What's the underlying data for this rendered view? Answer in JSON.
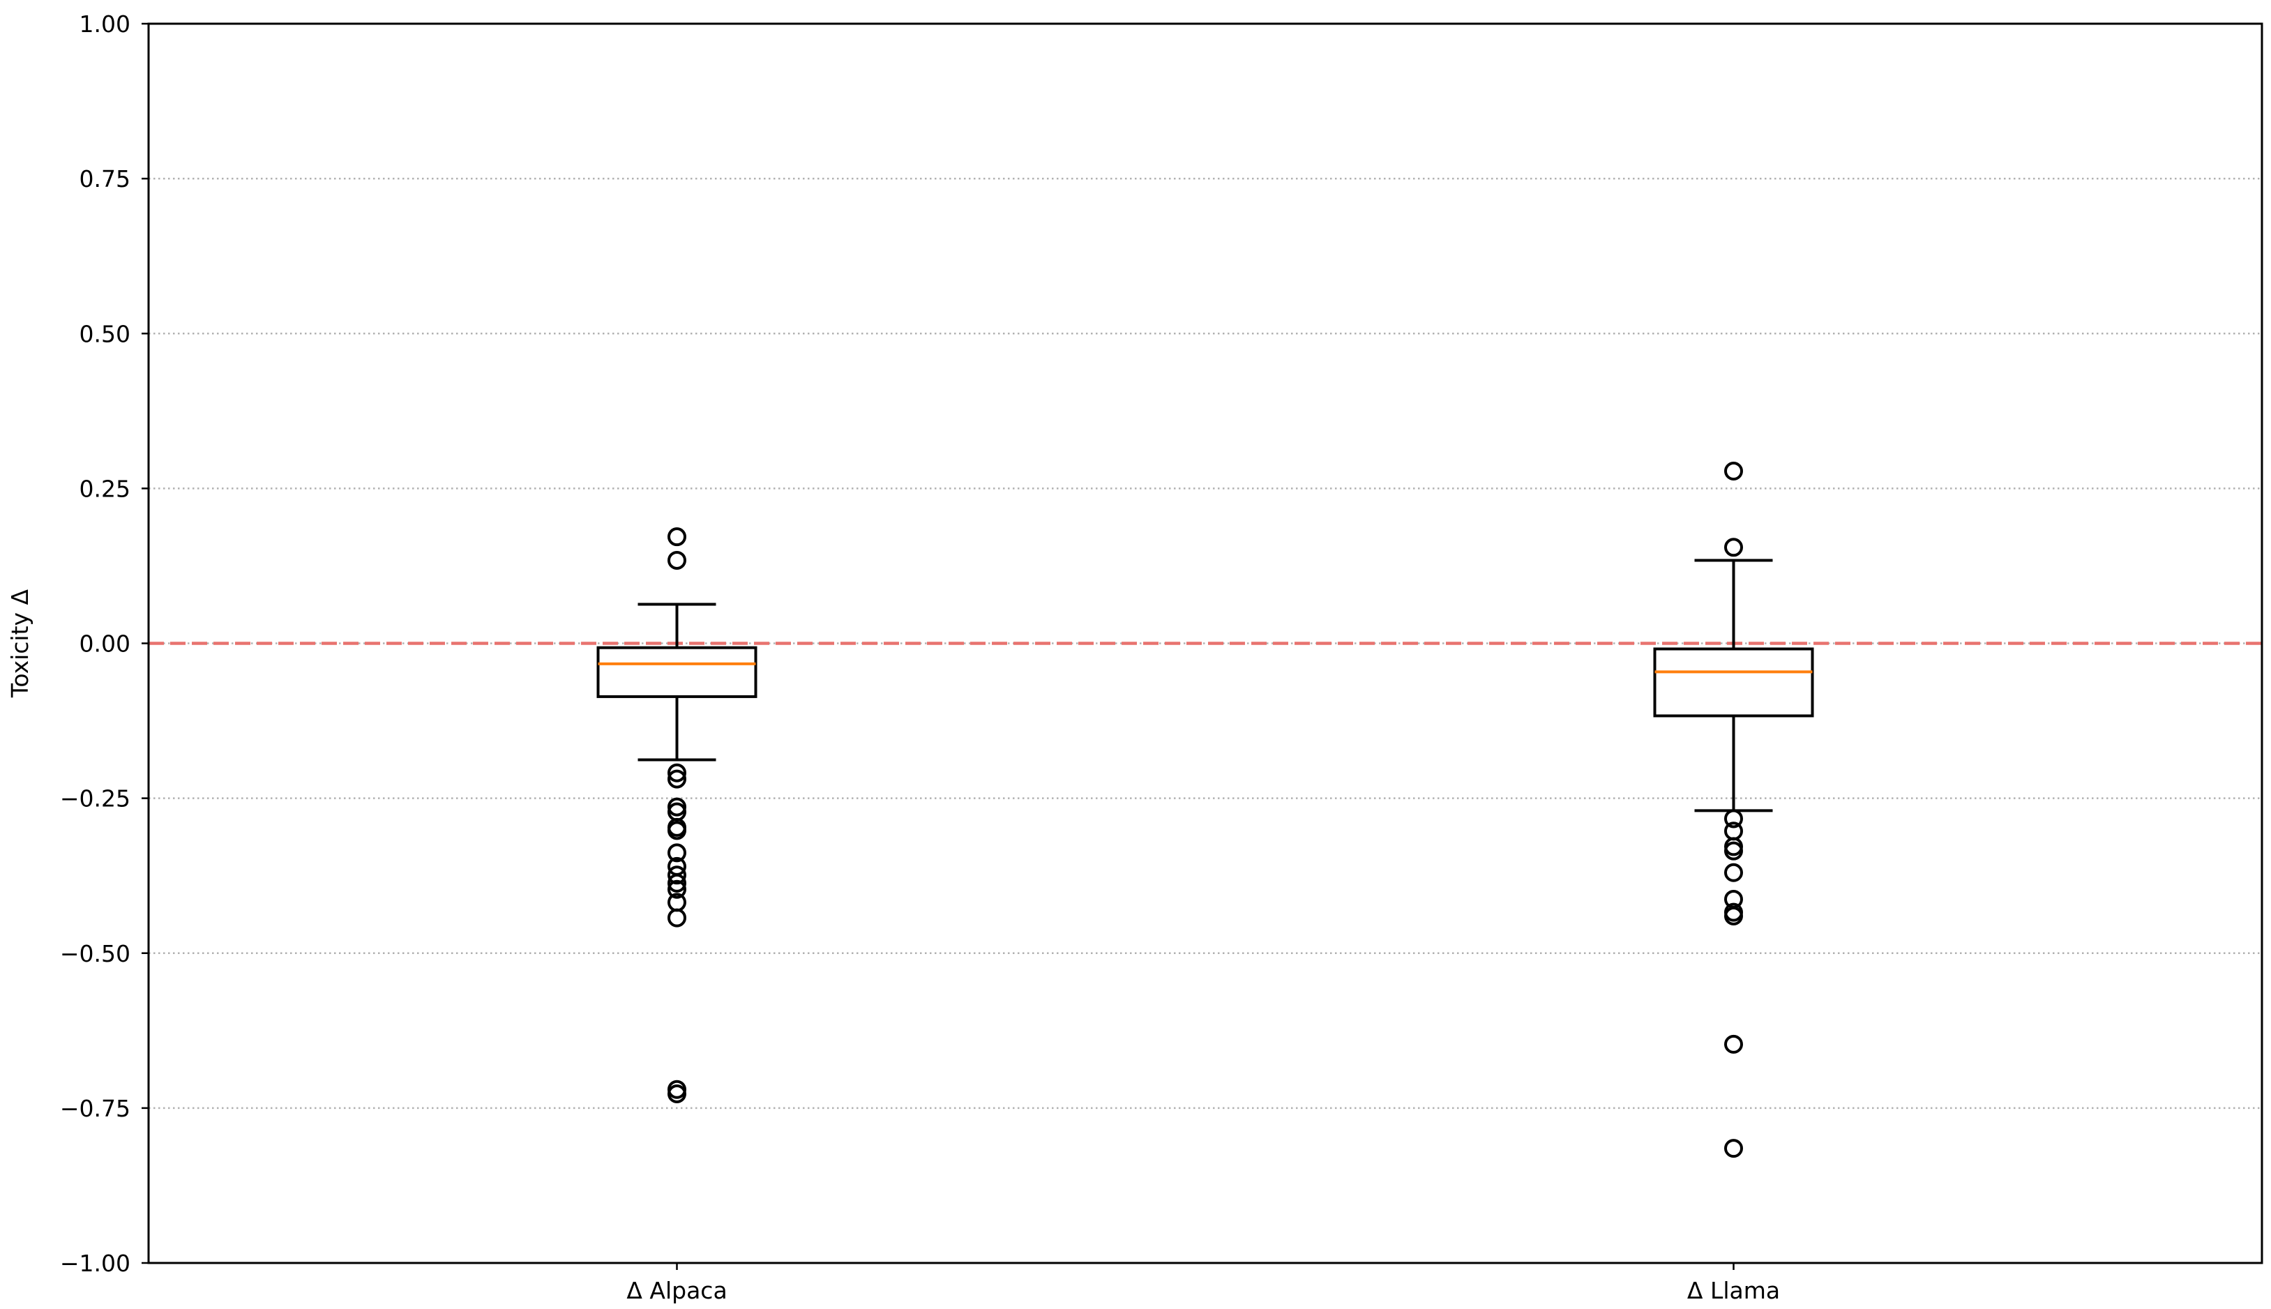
{
  "chart_data": {
    "type": "box",
    "title": "",
    "xlabel": "",
    "ylabel": "Toxicity Δ",
    "ylim": [
      -1.0,
      1.0
    ],
    "yticks": [
      "1.00",
      "0.75",
      "0.50",
      "0.25",
      "0.00",
      "−0.25",
      "−0.50",
      "−0.75",
      "−1.00"
    ],
    "ytick_values": [
      1.0,
      0.75,
      0.5,
      0.25,
      0.0,
      -0.25,
      -0.5,
      -0.75,
      -1.0
    ],
    "grid": "y, dotted",
    "reference_line": {
      "y": 0.0,
      "style": "dashed",
      "color": "#e8736f"
    },
    "categories": [
      "Δ Alpaca",
      "Δ Llama"
    ],
    "boxes": [
      {
        "name": "Δ Alpaca",
        "whisker_high": 0.063,
        "q3": -0.007,
        "median": -0.033,
        "q1": -0.086,
        "whisker_low": -0.188,
        "outliers": [
          0.172,
          0.134,
          -0.209,
          -0.219,
          -0.264,
          -0.272,
          -0.297,
          -0.302,
          -0.338,
          -0.36,
          -0.374,
          -0.387,
          -0.397,
          -0.418,
          -0.443,
          -0.72,
          -0.727
        ]
      },
      {
        "name": "Δ Llama",
        "whisker_high": 0.134,
        "q3": -0.009,
        "median": -0.046,
        "q1": -0.117,
        "whisker_low": -0.27,
        "outliers": [
          0.278,
          0.155,
          -0.283,
          -0.303,
          -0.328,
          -0.335,
          -0.37,
          -0.413,
          -0.434,
          -0.44,
          -0.647,
          -0.815
        ]
      }
    ],
    "colors": {
      "box": "#000000",
      "median": "#ff7f0e",
      "grid": "#b0b0b0",
      "outlier": "#000000"
    }
  }
}
